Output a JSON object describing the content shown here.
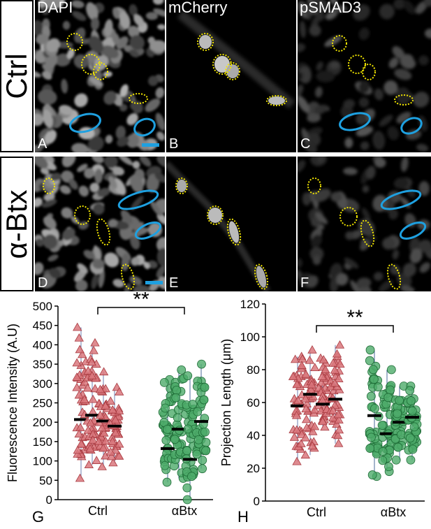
{
  "rows": [
    {
      "label": "Ctrl",
      "panels": [
        {
          "letter": "A",
          "channel": "DAPI"
        },
        {
          "letter": "B",
          "channel": "mCherry"
        },
        {
          "letter": "C",
          "channel": "pSMAD3"
        }
      ]
    },
    {
      "label": "α-Btx",
      "panels": [
        {
          "letter": "D",
          "channel": ""
        },
        {
          "letter": "E",
          "channel": ""
        },
        {
          "letter": "F",
          "channel": ""
        }
      ]
    }
  ],
  "colors": {
    "yellow_outline": "#f2e600",
    "blue_outline": "#1ea0e0",
    "ctrl": "#d9777c",
    "ctrl_edge": "#a83a40",
    "btx": "#4dab6a",
    "btx_edge": "#1e6b36",
    "panel_bg": "#000000"
  },
  "chart_data": [
    {
      "panel": "G",
      "type": "scatter",
      "ylabel": "Fluorescence Intensity (A.U)",
      "xlabel": "",
      "ylim": [
        0,
        500
      ],
      "yticks": [
        0,
        50,
        100,
        150,
        200,
        250,
        300,
        350,
        400,
        450,
        500
      ],
      "categories": [
        "Ctrl",
        "αBtx"
      ],
      "significance": "**",
      "series": [
        {
          "group": "Ctrl",
          "marker": "triangle",
          "mean": 207,
          "min": 55,
          "max": 445
        },
        {
          "group": "Ctrl",
          "marker": "triangle",
          "mean": 218,
          "min": 90,
          "max": 405
        },
        {
          "group": "Ctrl",
          "marker": "triangle",
          "mean": 203,
          "min": 85,
          "max": 330
        },
        {
          "group": "Ctrl",
          "marker": "triangle",
          "mean": 190,
          "min": 95,
          "max": 290
        },
        {
          "group": "αBtx",
          "marker": "circle",
          "mean": 132,
          "min": 45,
          "max": 310
        },
        {
          "group": "αBtx",
          "marker": "circle",
          "mean": 182,
          "min": 55,
          "max": 335
        },
        {
          "group": "αBtx",
          "marker": "circle",
          "mean": 104,
          "min": 0,
          "max": 320
        },
        {
          "group": "αBtx",
          "marker": "circle",
          "mean": 202,
          "min": 80,
          "max": 350
        }
      ]
    },
    {
      "panel": "H",
      "type": "scatter",
      "ylabel": "Projection Length (μm)",
      "xlabel": "",
      "ylim": [
        0,
        120
      ],
      "yticks": [
        0,
        20,
        40,
        60,
        80,
        100,
        120
      ],
      "categories": [
        "Ctrl",
        "αBtx"
      ],
      "significance": "**",
      "series": [
        {
          "group": "Ctrl",
          "marker": "triangle",
          "mean": 58,
          "min": 24,
          "max": 88
        },
        {
          "group": "Ctrl",
          "marker": "triangle",
          "mean": 65,
          "min": 28,
          "max": 92
        },
        {
          "group": "Ctrl",
          "marker": "triangle",
          "mean": 59,
          "min": 45,
          "max": 87
        },
        {
          "group": "Ctrl",
          "marker": "triangle",
          "mean": 62,
          "min": 35,
          "max": 95
        },
        {
          "group": "αBtx",
          "marker": "circle",
          "mean": 52,
          "min": 15,
          "max": 92
        },
        {
          "group": "αBtx",
          "marker": "circle",
          "mean": 41,
          "min": 18,
          "max": 80
        },
        {
          "group": "αBtx",
          "marker": "circle",
          "mean": 48,
          "min": 25,
          "max": 70
        },
        {
          "group": "αBtx",
          "marker": "circle",
          "mean": 51,
          "min": 25,
          "max": 70
        }
      ]
    }
  ]
}
